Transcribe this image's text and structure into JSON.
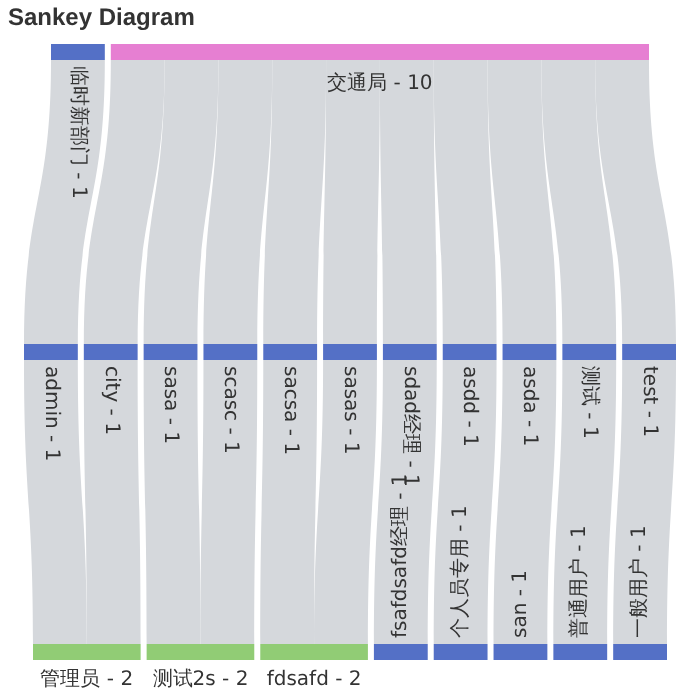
{
  "chart_data": {
    "type": "other",
    "title": "Sankey Diagram",
    "data_labels": true,
    "categories": [
      "临时新部门 -",
      "交通局 -",
      "admin -",
      "city -",
      "sasa -",
      "scasc -",
      "sacsa -",
      "sasas -",
      "sdad经理 -",
      "asdd -",
      "asda -",
      "测试 -",
      "test -",
      "管理员 -",
      "测试2s -",
      "fdsafd -",
      "fsafdsafd经理 -",
      "个人员专用 -",
      "san -",
      "普通用户 -",
      "一般用户 -"
    ],
    "colors": [
      "#5470c6",
      "#e67fd2",
      "#5470c6",
      "#5470c6",
      "#5470c6",
      "#5470c6",
      "#5470c6",
      "#5470c6",
      "#5470c6",
      "#5470c6",
      "#5470c6",
      "#5470c6",
      "#5470c6",
      "#91cc75",
      "#91cc75",
      "#91cc75",
      "#5470c6",
      "#5470c6",
      "#5470c6",
      "#5470c6",
      "#5470c6"
    ],
    "series": [
      {
        "values": [
          1,
          10,
          null,
          null,
          null,
          null,
          null,
          null,
          null,
          null,
          null,
          null,
          null,
          null,
          null,
          null,
          null,
          null,
          null,
          null,
          null
        ]
      },
      {
        "values": [
          null,
          null,
          1,
          1,
          1,
          1,
          1,
          1,
          1,
          1,
          1,
          1,
          1,
          null,
          null,
          null,
          null,
          null,
          null,
          null,
          null
        ]
      },
      {
        "values": [
          null,
          null,
          null,
          null,
          null,
          null,
          null,
          null,
          null,
          null,
          null,
          null,
          null,
          2,
          2,
          2,
          1,
          1,
          1,
          1,
          1
        ]
      }
    ]
  }
}
